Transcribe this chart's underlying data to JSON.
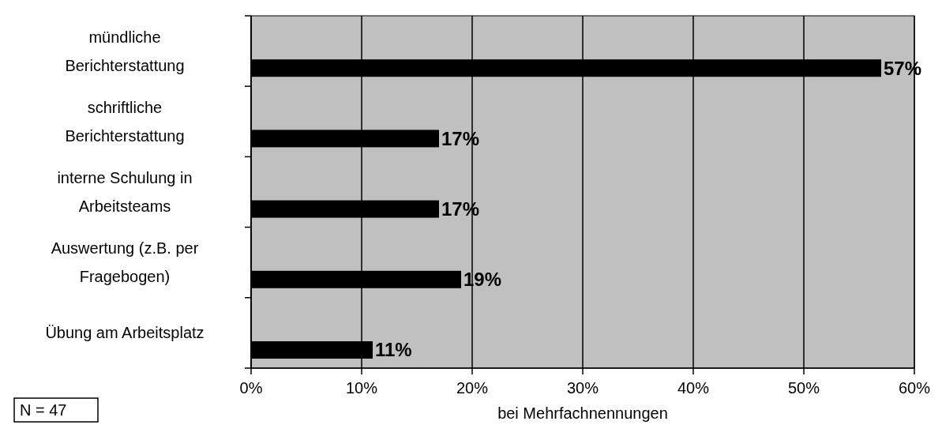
{
  "chart_data": {
    "type": "bar",
    "orientation": "horizontal",
    "categories": [
      "mündliche Berichterstattung",
      "schriftliche Berichterstattung",
      "interne Schulung in Arbeitsteams",
      "Auswertung (z.B. per Fragebogen)",
      "Übung am Arbeitsplatz"
    ],
    "values": [
      57,
      17,
      17,
      19,
      11
    ],
    "value_labels": [
      "57%",
      "17%",
      "17%",
      "19%",
      "11%"
    ],
    "color": "#000000",
    "xlim": [
      0,
      60
    ],
    "xticks": [
      {
        "value": 0,
        "label": "0%"
      },
      {
        "value": 10,
        "label": "10%"
      },
      {
        "value": 20,
        "label": "20%"
      },
      {
        "value": 30,
        "label": "30%"
      },
      {
        "value": 40,
        "label": "40%"
      },
      {
        "value": 50,
        "label": "50%"
      },
      {
        "value": 60,
        "label": "60%"
      }
    ],
    "grid": "x",
    "xlabel": "bei Mehrfachnennungen",
    "annotations": [
      "N = 47"
    ]
  }
}
